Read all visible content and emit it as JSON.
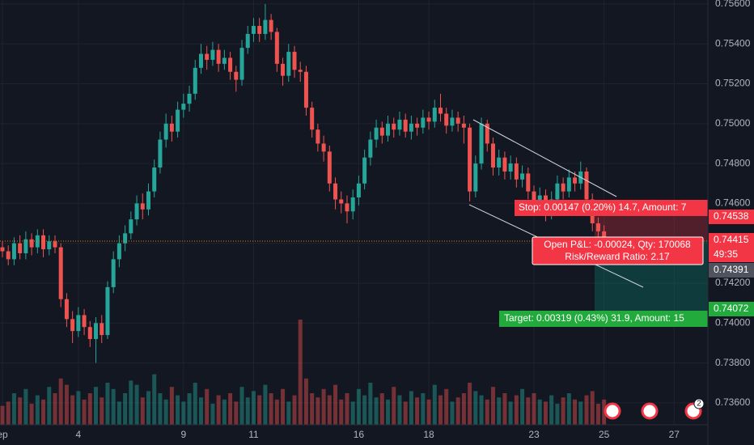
{
  "chart_data": {
    "type": "candlestick",
    "categories": [
      "ep",
      null,
      null,
      null,
      null,
      null,
      null,
      null,
      null,
      null,
      null,
      null,
      null,
      "4",
      null,
      null,
      null,
      null,
      null,
      null,
      null,
      null,
      null,
      null,
      null,
      null,
      null,
      null,
      null,
      null,
      null,
      "9",
      null,
      null,
      null,
      null,
      null,
      null,
      null,
      null,
      null,
      null,
      null,
      "11",
      null,
      null,
      null,
      null,
      null,
      null,
      null,
      null,
      null,
      null,
      null,
      null,
      null,
      null,
      null,
      null,
      null,
      "16",
      null,
      null,
      null,
      null,
      null,
      null,
      null,
      null,
      null,
      null,
      null,
      "18",
      null,
      null,
      null,
      null,
      null,
      null,
      null,
      null,
      null,
      null,
      null,
      null,
      null,
      null,
      null,
      null,
      null,
      "23",
      null,
      null,
      null,
      null,
      null,
      null,
      null,
      null,
      null,
      null,
      null,
      "25",
      null,
      null,
      null,
      null,
      null,
      null,
      null,
      null,
      null,
      null,
      null,
      "27"
    ],
    "open": [
      0.7438,
      0.7436,
      0.7432,
      0.744,
      0.7435,
      0.7442,
      0.7438,
      0.7444,
      0.7437,
      0.7441,
      0.7438,
      0.7412,
      0.7402,
      0.7396,
      0.7404,
      0.7398,
      0.7392,
      0.74,
      0.7394,
      0.7418,
      0.7432,
      0.744,
      0.7445,
      0.7452,
      0.746,
      0.7457,
      0.7466,
      0.7478,
      0.7492,
      0.75,
      0.7496,
      0.7507,
      0.751,
      0.7515,
      0.7528,
      0.7535,
      0.7532,
      0.7537,
      0.753,
      0.7533,
      0.7526,
      0.7522,
      0.7538,
      0.7545,
      0.7549,
      0.7545,
      0.7552,
      0.7546,
      0.753,
      0.7524,
      0.7536,
      0.7527,
      0.7526,
      0.7508,
      0.7497,
      0.749,
      0.7486,
      0.747,
      0.7462,
      0.746,
      0.7456,
      0.7463,
      0.747,
      0.7483,
      0.7492,
      0.7498,
      0.7494,
      0.75,
      0.7497,
      0.7502,
      0.7496,
      0.75,
      0.7498,
      0.7503,
      0.7501,
      0.7508,
      0.7505,
      0.7499,
      0.7503,
      0.75,
      0.7498,
      0.7466,
      0.748,
      0.75,
      0.749,
      0.7478,
      0.7483,
      0.7476,
      0.748,
      0.7472,
      0.7475,
      0.7466,
      0.7459,
      0.7464,
      0.7455,
      0.7462,
      0.747,
      0.7466,
      0.7473,
      0.747,
      0.7476,
      0.7462,
      0.745,
      0.7446,
      null,
      null,
      null,
      null,
      null,
      null,
      null,
      null,
      null,
      null,
      null,
      null
    ],
    "high": [
      0.7441,
      0.7439,
      0.7443,
      0.7444,
      0.7446,
      0.7445,
      0.7447,
      0.7447,
      0.7444,
      0.7444,
      0.744,
      0.7415,
      0.7406,
      0.7408,
      0.7407,
      0.7401,
      0.7403,
      0.7404,
      0.7421,
      0.7436,
      0.7444,
      0.7449,
      0.7456,
      0.7464,
      0.7465,
      0.747,
      0.7482,
      0.7496,
      0.7505,
      0.7504,
      0.7511,
      0.7515,
      0.7519,
      0.7532,
      0.754,
      0.7539,
      0.7541,
      0.754,
      0.7537,
      0.7536,
      0.7529,
      0.7542,
      0.7549,
      0.7553,
      0.7553,
      0.756,
      0.7555,
      0.7548,
      0.7533,
      0.754,
      0.7539,
      0.7531,
      0.7529,
      0.7511,
      0.75,
      0.7494,
      0.7489,
      0.7473,
      0.7466,
      0.7464,
      0.7467,
      0.7474,
      0.7487,
      0.7496,
      0.7502,
      0.7501,
      0.7504,
      0.7503,
      0.7506,
      0.7505,
      0.7504,
      0.7503,
      0.7507,
      0.7506,
      0.7512,
      0.7515,
      0.7508,
      0.7507,
      0.7506,
      0.7504,
      0.75,
      0.7484,
      0.7503,
      0.7502,
      0.7493,
      0.7487,
      0.7486,
      0.7484,
      0.7483,
      0.7479,
      0.7478,
      0.7469,
      0.7468,
      0.7467,
      0.7466,
      0.7474,
      0.7473,
      0.7477,
      0.7476,
      0.7481,
      0.7478,
      0.7465,
      0.7453,
      0.7449,
      null,
      null,
      null,
      null,
      null,
      null,
      null,
      null,
      null,
      null,
      null,
      null
    ],
    "low": [
      0.7433,
      0.7429,
      0.7429,
      0.7432,
      0.7432,
      0.7434,
      0.7435,
      0.7433,
      0.7434,
      0.7435,
      0.7408,
      0.7398,
      0.739,
      0.7393,
      0.7394,
      0.7388,
      0.738,
      0.739,
      0.7392,
      0.7415,
      0.7428,
      0.7436,
      0.7442,
      0.7449,
      0.7452,
      0.7454,
      0.7463,
      0.7475,
      0.7488,
      0.7491,
      0.7493,
      0.7503,
      0.7506,
      0.7512,
      0.7525,
      0.7527,
      0.7529,
      0.7526,
      0.7527,
      0.7522,
      0.7516,
      0.7519,
      0.7535,
      0.7541,
      0.7541,
      0.7542,
      0.7542,
      0.7526,
      0.7519,
      0.7521,
      0.7523,
      0.7521,
      0.7504,
      0.7493,
      0.7486,
      0.7481,
      0.7466,
      0.7457,
      0.7455,
      0.745,
      0.7452,
      0.7459,
      0.7467,
      0.7479,
      0.7488,
      0.749,
      0.7491,
      0.7493,
      0.7494,
      0.7493,
      0.7492,
      0.7494,
      0.7495,
      0.7497,
      0.7498,
      0.7501,
      0.7495,
      0.7496,
      0.7496,
      0.749,
      0.7461,
      0.7463,
      0.7477,
      0.7486,
      0.7474,
      0.7474,
      0.7472,
      0.7472,
      0.7468,
      0.7468,
      0.7462,
      0.7455,
      0.7456,
      0.7451,
      0.7452,
      0.7459,
      0.7462,
      0.7463,
      0.7466,
      0.7467,
      0.7458,
      0.7446,
      0.744,
      0.7438,
      null,
      null,
      null,
      null,
      null,
      null,
      null,
      null,
      null,
      null,
      null,
      null
    ],
    "close": [
      0.7436,
      0.7432,
      0.744,
      0.7435,
      0.7442,
      0.7438,
      0.7444,
      0.7437,
      0.7441,
      0.7438,
      0.7412,
      0.7402,
      0.7396,
      0.7404,
      0.7398,
      0.7392,
      0.74,
      0.7394,
      0.7418,
      0.7432,
      0.744,
      0.7445,
      0.7452,
      0.746,
      0.7457,
      0.7466,
      0.7478,
      0.7492,
      0.75,
      0.7496,
      0.7507,
      0.751,
      0.7515,
      0.7528,
      0.7535,
      0.7532,
      0.7537,
      0.753,
      0.7533,
      0.7526,
      0.7522,
      0.7538,
      0.7545,
      0.7549,
      0.7545,
      0.7552,
      0.7546,
      0.753,
      0.7524,
      0.7536,
      0.7527,
      0.7526,
      0.7508,
      0.7497,
      0.749,
      0.7486,
      0.747,
      0.7462,
      0.746,
      0.7456,
      0.7463,
      0.747,
      0.7483,
      0.7492,
      0.7498,
      0.7494,
      0.75,
      0.7497,
      0.7502,
      0.7496,
      0.75,
      0.7498,
      0.7503,
      0.7501,
      0.7508,
      0.7505,
      0.7499,
      0.7503,
      0.75,
      0.7498,
      0.7466,
      0.748,
      0.75,
      0.749,
      0.7478,
      0.7483,
      0.7476,
      0.748,
      0.7472,
      0.7475,
      0.7466,
      0.7459,
      0.7464,
      0.7455,
      0.7462,
      0.747,
      0.7466,
      0.7473,
      0.747,
      0.7476,
      0.7462,
      0.745,
      0.7446,
      0.74415,
      null,
      null,
      null,
      null,
      null,
      null,
      null,
      null,
      null,
      null,
      null,
      null
    ],
    "volume": [
      18,
      22,
      30,
      26,
      34,
      20,
      28,
      24,
      36,
      30,
      44,
      38,
      28,
      32,
      24,
      30,
      36,
      26,
      40,
      34,
      22,
      30,
      42,
      38,
      26,
      32,
      48,
      30,
      24,
      36,
      28,
      22,
      30,
      40,
      26,
      34,
      20,
      28,
      24,
      30,
      22,
      36,
      26,
      32,
      28,
      38,
      30,
      24,
      34,
      22,
      28,
      100,
      44,
      30,
      26,
      34,
      28,
      38,
      24,
      30,
      22,
      34,
      28,
      40,
      26,
      30,
      24,
      36,
      28,
      22,
      32,
      26,
      30,
      24,
      38,
      28,
      34,
      22,
      26,
      30,
      40,
      32,
      28,
      24,
      36,
      26,
      30,
      22,
      28,
      34,
      26,
      30,
      24,
      22,
      28,
      20,
      26,
      30,
      24,
      22,
      28,
      32,
      20,
      24,
      null,
      null,
      null,
      null,
      null,
      null,
      null,
      null,
      null,
      null,
      null,
      null
    ],
    "up_color": "#26a69a",
    "down_color": "#ef5350",
    "ylim": [
      0.7349,
      0.7562
    ],
    "yticks": [
      {
        "value": 0.736,
        "label": "0.73600"
      },
      {
        "value": 0.738,
        "label": "0.73800"
      },
      {
        "value": 0.74,
        "label": "0.74000"
      },
      {
        "value": 0.742,
        "label": "0.74200"
      },
      {
        "value": 0.744,
        "label": "0.74400"
      },
      {
        "value": 0.746,
        "label": "0.74600"
      },
      {
        "value": 0.748,
        "label": "0.74800"
      },
      {
        "value": 0.75,
        "label": "0.75000"
      },
      {
        "value": 0.752,
        "label": "0.75200"
      },
      {
        "value": 0.754,
        "label": "0.75400"
      },
      {
        "value": 0.756,
        "label": "0.75600"
      }
    ],
    "grid": true,
    "annotations": {
      "stop": "Stop: 0.00147 (0.20%) 14.7, Amount: 7",
      "pnl": "Open P&L: -0.00024, Qty: 170068",
      "risk_reward": "Risk/Reward Ratio: 2.17",
      "target": "Target: 0.00319 (0.43%) 31.9, Amount: 15",
      "stop_price": "0.74538",
      "last_price": "0.74415",
      "countdown": "49:35",
      "entry_price": "0.74391",
      "target_price": "0.74072",
      "event_count": "2"
    }
  }
}
